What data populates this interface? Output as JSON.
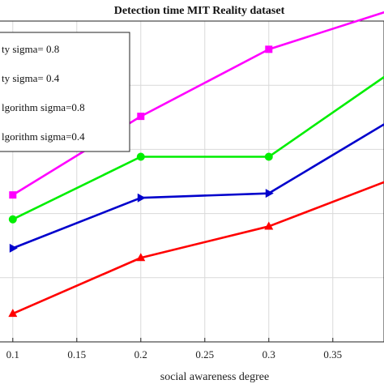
{
  "chart_data": {
    "type": "line",
    "title": "Detection time MIT Reality dataset",
    "xlabel": "social awareness degree",
    "ylabel": "",
    "xlim": [
      0.09,
      0.39
    ],
    "ylim": [
      0.0,
      1.0
    ],
    "x_ticks": [
      "0.1",
      "0.15",
      "0.2",
      "0.25",
      "0.3",
      "0.35"
    ],
    "x_tick_values": [
      0.1,
      0.15,
      0.2,
      0.25,
      0.3,
      0.35
    ],
    "grid": true,
    "legend_position": "top-left",
    "series": [
      {
        "name": "ty sigma= 0.8",
        "color": "#ff00ff",
        "marker": "square",
        "x": [
          0.1,
          0.2,
          0.3,
          0.4
        ],
        "y": [
          0.458,
          0.703,
          0.912,
          1.04
        ]
      },
      {
        "name": "ty sigma= 0.4",
        "color": "#00ee00",
        "marker": "circle",
        "x": [
          0.1,
          0.2,
          0.3,
          0.4
        ],
        "y": [
          0.382,
          0.577,
          0.577,
          0.853
        ]
      },
      {
        "name": "lgorithm sigma=0.8",
        "color": "#0000cc",
        "marker": "triangle-right",
        "x": [
          0.1,
          0.2,
          0.3,
          0.4
        ],
        "y": [
          0.292,
          0.449,
          0.463,
          0.702
        ]
      },
      {
        "name": "lgorithm sigma=0.4",
        "color": "#ff0000",
        "marker": "triangle-up",
        "x": [
          0.1,
          0.2,
          0.3,
          0.4
        ],
        "y": [
          0.088,
          0.262,
          0.36,
          0.513
        ]
      }
    ]
  }
}
